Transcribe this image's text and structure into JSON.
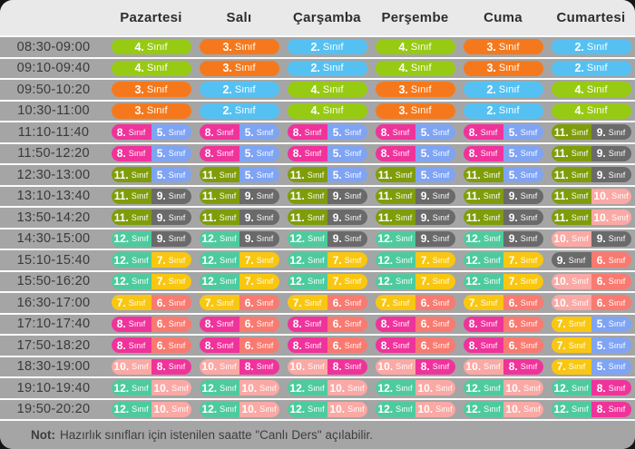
{
  "schedule": {
    "days": [
      "Pazartesi",
      "Salı",
      "Çarşamba",
      "Perşembe",
      "Cuma",
      "Cumartesi"
    ],
    "pill_suffix": "Sınıf",
    "rows": [
      {
        "time": "08:30-09:00",
        "cells": [
          [
            4
          ],
          [
            3
          ],
          [
            2
          ],
          [
            4
          ],
          [
            3
          ],
          [
            2
          ]
        ]
      },
      {
        "time": "09:10-09:40",
        "cells": [
          [
            4
          ],
          [
            3
          ],
          [
            2
          ],
          [
            4
          ],
          [
            3
          ],
          [
            2
          ]
        ]
      },
      {
        "time": "09:50-10:20",
        "cells": [
          [
            3
          ],
          [
            2
          ],
          [
            4
          ],
          [
            3
          ],
          [
            2
          ],
          [
            4
          ]
        ]
      },
      {
        "time": "10:30-11:00",
        "cells": [
          [
            3
          ],
          [
            2
          ],
          [
            4
          ],
          [
            3
          ],
          [
            2
          ],
          [
            4
          ]
        ]
      },
      {
        "time": "11:10-11:40",
        "cells": [
          [
            8,
            5
          ],
          [
            8,
            5
          ],
          [
            8,
            5
          ],
          [
            8,
            5
          ],
          [
            8,
            5
          ],
          [
            11,
            9
          ]
        ]
      },
      {
        "time": "11:50-12:20",
        "cells": [
          [
            8,
            5
          ],
          [
            8,
            5
          ],
          [
            8,
            5
          ],
          [
            8,
            5
          ],
          [
            8,
            5
          ],
          [
            11,
            9
          ]
        ]
      },
      {
        "time": "12:30-13:00",
        "cells": [
          [
            11,
            5
          ],
          [
            11,
            5
          ],
          [
            11,
            5
          ],
          [
            11,
            5
          ],
          [
            11,
            5
          ],
          [
            11,
            9
          ]
        ]
      },
      {
        "time": "13:10-13:40",
        "cells": [
          [
            11,
            9
          ],
          [
            11,
            9
          ],
          [
            11,
            9
          ],
          [
            11,
            9
          ],
          [
            11,
            9
          ],
          [
            11,
            10
          ]
        ]
      },
      {
        "time": "13:50-14:20",
        "cells": [
          [
            11,
            9
          ],
          [
            11,
            9
          ],
          [
            11,
            9
          ],
          [
            11,
            9
          ],
          [
            11,
            9
          ],
          [
            11,
            10
          ]
        ]
      },
      {
        "time": "14:30-15:00",
        "cells": [
          [
            12,
            9
          ],
          [
            12,
            9
          ],
          [
            12,
            9
          ],
          [
            12,
            9
          ],
          [
            12,
            9
          ],
          [
            10,
            9
          ]
        ]
      },
      {
        "time": "15:10-15:40",
        "cells": [
          [
            12,
            7
          ],
          [
            12,
            7
          ],
          [
            12,
            7
          ],
          [
            12,
            7
          ],
          [
            12,
            7
          ],
          [
            9,
            6
          ]
        ]
      },
      {
        "time": "15:50-16:20",
        "cells": [
          [
            12,
            7
          ],
          [
            12,
            7
          ],
          [
            12,
            7
          ],
          [
            12,
            7
          ],
          [
            12,
            7
          ],
          [
            10,
            6
          ]
        ]
      },
      {
        "time": "16:30-17:00",
        "cells": [
          [
            7,
            6
          ],
          [
            7,
            6
          ],
          [
            7,
            6
          ],
          [
            7,
            6
          ],
          [
            7,
            6
          ],
          [
            10,
            6
          ]
        ]
      },
      {
        "time": "17:10-17:40",
        "cells": [
          [
            8,
            6
          ],
          [
            8,
            6
          ],
          [
            8,
            6
          ],
          [
            8,
            6
          ],
          [
            8,
            6
          ],
          [
            7,
            5
          ]
        ]
      },
      {
        "time": "17:50-18:20",
        "cells": [
          [
            8,
            6
          ],
          [
            8,
            6
          ],
          [
            8,
            6
          ],
          [
            8,
            6
          ],
          [
            8,
            6
          ],
          [
            7,
            5
          ]
        ]
      },
      {
        "time": "18:30-19:00",
        "cells": [
          [
            10,
            8
          ],
          [
            10,
            8
          ],
          [
            10,
            8
          ],
          [
            10,
            8
          ],
          [
            10,
            8
          ],
          [
            7,
            5
          ]
        ]
      },
      {
        "time": "19:10-19:40",
        "cells": [
          [
            12,
            10
          ],
          [
            12,
            10
          ],
          [
            12,
            10
          ],
          [
            12,
            10
          ],
          [
            12,
            10
          ],
          [
            12,
            8
          ]
        ]
      },
      {
        "time": "19:50-20:20",
        "cells": [
          [
            12,
            10
          ],
          [
            12,
            10
          ],
          [
            12,
            10
          ],
          [
            12,
            10
          ],
          [
            12,
            10
          ],
          [
            12,
            8
          ]
        ]
      }
    ]
  },
  "grade_colors": {
    "2": "#55C1F2",
    "3": "#F5791C",
    "4": "#97CA12",
    "5": "#7FA4F4",
    "6": "#F97A70",
    "7": "#F9C711",
    "8": "#F0339B",
    "9": "#6A6A6A",
    "10": "#FBA9A5",
    "11": "#7F9D0A",
    "12": "#4ECB9E"
  },
  "note": {
    "label": "Not:",
    "text": "Hazırlık sınıfları için istenilen saatte \"Canlı Ders\" açılabilir."
  },
  "colors": {
    "page_bg": "#151515",
    "card_bg": "#A5A5A5",
    "header_bg": "#E9E9E9",
    "separator": "#FBFBFB",
    "pill_text": "#FFFFFF"
  }
}
